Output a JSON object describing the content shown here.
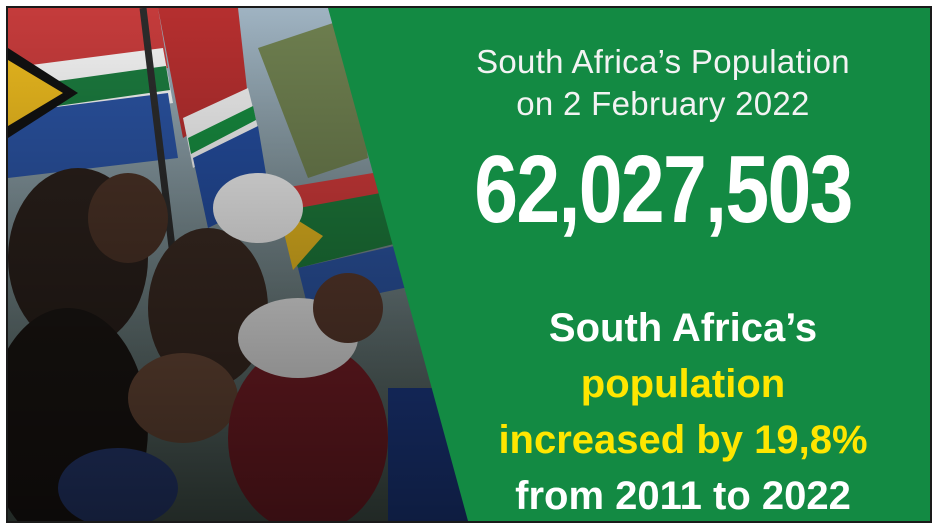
{
  "headline": {
    "line1": "South Africa’s Population",
    "line2": "on 2 February 2022"
  },
  "population_figure": "62,027,503",
  "statement": {
    "line1": "South Africa’s",
    "line2": "population",
    "line3": "increased by 19,8%",
    "line4": "from 2011 to 2022"
  },
  "colors": {
    "panel_green": "#138a43",
    "highlight_yellow": "#ffe600",
    "text_white": "#ffffff"
  },
  "photo": {
    "subject": "crowd-waving-south-african-flags"
  }
}
